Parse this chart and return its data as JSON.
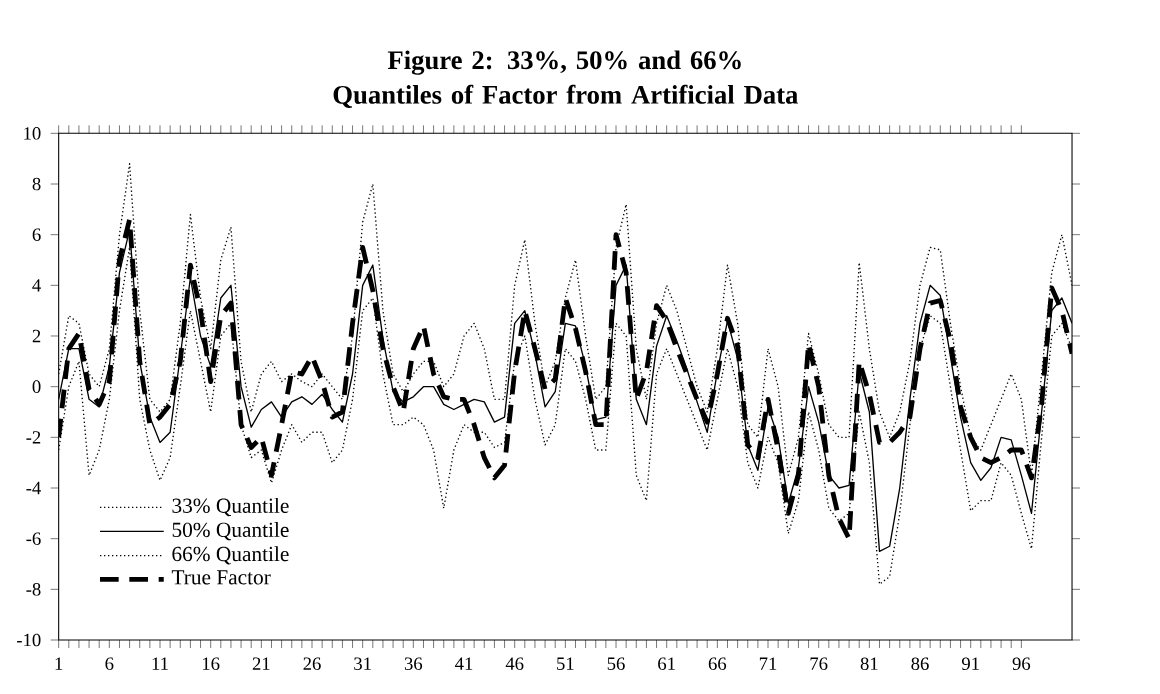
{
  "chart_data": {
    "type": "line",
    "title": "Figure 2: 33%, 50% and 66% Quantiles of Factor from Artificial Data",
    "x": [
      1,
      2,
      3,
      4,
      5,
      6,
      7,
      8,
      9,
      10,
      11,
      12,
      13,
      14,
      15,
      16,
      17,
      18,
      19,
      20,
      21,
      22,
      23,
      24,
      25,
      26,
      27,
      28,
      29,
      30,
      31,
      32,
      33,
      34,
      35,
      36,
      37,
      38,
      39,
      40,
      41,
      42,
      43,
      44,
      45,
      46,
      47,
      48,
      49,
      50,
      51,
      52,
      53,
      54,
      55,
      56,
      57,
      58,
      59,
      60,
      61,
      62,
      63,
      64,
      65,
      66,
      67,
      68,
      69,
      70,
      71,
      72,
      73,
      74,
      75,
      76,
      77,
      78,
      79,
      80,
      81,
      82,
      83,
      84,
      85,
      86,
      87,
      88,
      89,
      90,
      91,
      92,
      93,
      94,
      95,
      96,
      97,
      98,
      99,
      100,
      101
    ],
    "xlim": [
      1,
      101
    ],
    "xticks": [
      1,
      6,
      11,
      16,
      21,
      26,
      31,
      36,
      41,
      46,
      51,
      56,
      61,
      66,
      71,
      76,
      81,
      86,
      91,
      96
    ],
    "ylim": [
      -10,
      10
    ],
    "yticks": [
      -10,
      -8,
      -6,
      -4,
      -2,
      0,
      2,
      4,
      6,
      8,
      10
    ],
    "grid": false,
    "legend": "bottom left",
    "marker": "none",
    "series": [
      {
        "name": "33% Quantile",
        "color": "#000000",
        "line_style": "dotted",
        "values": [
          -2.5,
          0,
          1,
          -3.5,
          -2.5,
          -0.5,
          3,
          5.5,
          -0.5,
          -2.5,
          -3.7,
          -2.8,
          0,
          3,
          1,
          -1,
          2,
          2.5,
          -1.5,
          -2.8,
          -2.5,
          -3.8,
          -2.5,
          -1.5,
          -2.2,
          -1.8,
          -1.8,
          -3,
          -2.5,
          -0.5,
          3,
          3.5,
          0.5,
          -1.5,
          -1.5,
          -1.2,
          -1.5,
          -2.5,
          -4.8,
          -2.5,
          -1.5,
          -1.8,
          -1.8,
          -2.4,
          -2.2,
          1,
          2,
          -0.5,
          -2.3,
          -1.5,
          1.5,
          1,
          -0.5,
          -2.5,
          -2.5,
          2.5,
          2,
          -3.5,
          -4.5,
          0.5,
          1.5,
          0.5,
          -0.5,
          -1.5,
          -2.5,
          -0.5,
          1.5,
          0,
          -3,
          -4,
          -2,
          -3,
          -5.8,
          -4.5,
          -1,
          -2.5,
          -4.8,
          -5.3,
          -5,
          -1,
          -3,
          -7.8,
          -7.5,
          -5,
          -1.5,
          1.5,
          2.8,
          2.5,
          0,
          -2.5,
          -4.9,
          -4.5,
          -4.5,
          -3,
          -3.5,
          -5,
          -6.4,
          -2,
          2,
          2.5,
          1.5
        ]
      },
      {
        "name": "50% Quantile",
        "color": "#000000",
        "line_style": "solid",
        "values": [
          -0.5,
          1.5,
          1.5,
          -0.5,
          -0.8,
          0.8,
          4.5,
          6.2,
          1,
          -1.2,
          -2.2,
          -1.8,
          1.2,
          4.3,
          2,
          0.8,
          3.5,
          4,
          0,
          -1.6,
          -0.9,
          -0.6,
          -1.2,
          -0.6,
          -0.4,
          -0.7,
          -0.3,
          -0.9,
          -1.4,
          0.5,
          4,
          4.8,
          1.9,
          -0.2,
          -0.6,
          -0.4,
          0,
          0,
          -0.7,
          -0.9,
          -0.7,
          -0.5,
          -0.6,
          -1.4,
          -1.2,
          2.5,
          3,
          1.3,
          -0.8,
          -0.2,
          2.5,
          2.4,
          0.8,
          -1.3,
          -1.2,
          4,
          4.8,
          -0.5,
          -1.5,
          1.6,
          2.8,
          1.8,
          0.7,
          -0.6,
          -1.8,
          0.6,
          2.6,
          1.1,
          -2.3,
          -3.3,
          -0.8,
          -2,
          -4.6,
          -3.2,
          0,
          -1.4,
          -3.5,
          -4,
          -3.9,
          0.6,
          -1,
          -6.5,
          -6.3,
          -4,
          -0.5,
          2.5,
          4,
          3.6,
          1.2,
          -1.2,
          -3,
          -3.7,
          -3.2,
          -2,
          -2.1,
          -3.5,
          -5,
          -1,
          3,
          3.5,
          2.5
        ]
      },
      {
        "name": "66% Quantile",
        "color": "#000000",
        "line_style": "dotted",
        "values": [
          0.5,
          2.8,
          2.5,
          0.5,
          0,
          1.5,
          6,
          8.8,
          3,
          -0.5,
          -1,
          -0.5,
          2.5,
          6.8,
          3.5,
          1.5,
          5,
          6.3,
          1,
          -1,
          0.5,
          1,
          0.2,
          0.5,
          0.2,
          0,
          0.5,
          0,
          -0.5,
          2,
          6.5,
          8,
          3,
          0.5,
          -0.2,
          0.5,
          1,
          1,
          0,
          0.5,
          2,
          2.5,
          1.5,
          -0.5,
          -0.5,
          4,
          5.8,
          2.5,
          0,
          1,
          3.5,
          5,
          2,
          -0.5,
          0,
          5.5,
          7.2,
          1.5,
          -0.5,
          2.5,
          4,
          3,
          1.5,
          0,
          -1,
          1.5,
          4.8,
          2.5,
          -1.5,
          -2,
          1.5,
          0,
          -3.5,
          -2,
          2.1,
          0.5,
          -1.5,
          -2,
          -2,
          4.9,
          1.5,
          -1,
          -2,
          -1,
          1,
          4,
          5.5,
          5.4,
          2.5,
          0,
          -2,
          -2.5,
          -1.5,
          -0.5,
          0.5,
          -0.5,
          -3.5,
          0.5,
          4.5,
          6,
          4
        ]
      },
      {
        "name": "True Factor",
        "color": "#000000",
        "line_style": "dashed",
        "values": [
          -2,
          1.5,
          2.1,
          -0.1,
          -0.7,
          0.2,
          5,
          6.6,
          1,
          -1.5,
          -1.2,
          -0.7,
          1,
          4.8,
          3,
          0.2,
          2.8,
          3.3,
          -1.5,
          -2.4,
          -2,
          -3.5,
          -1.5,
          0.6,
          0.5,
          1.2,
          0.2,
          -1.2,
          -1,
          2.5,
          5.5,
          3.8,
          1.5,
          0,
          -1,
          1.5,
          2.4,
          0.5,
          -0.4,
          -0.5,
          -0.5,
          -1.5,
          -2.8,
          -3.6,
          -3.1,
          0.6,
          3,
          1.5,
          -0.1,
          0.3,
          3.5,
          2.3,
          0.6,
          -1.5,
          -1.5,
          6,
          4.5,
          -0.5,
          0.6,
          3.2,
          2.6,
          1.5,
          0.5,
          -0.5,
          -1.4,
          0.5,
          2.7,
          1.6,
          -2.3,
          -2.8,
          -0.5,
          -2.5,
          -5,
          -3.5,
          1.7,
          0,
          -3.5,
          -5.2,
          -6,
          1,
          -0.3,
          -2.2,
          -2.2,
          -1.8,
          -1.2,
          1.5,
          3.3,
          3.4,
          1.8,
          -0.8,
          -2,
          -2.8,
          -3,
          -2.8,
          -2.5,
          -2.5,
          -3.6,
          -0.7,
          3.9,
          3,
          1.3
        ]
      }
    ]
  }
}
